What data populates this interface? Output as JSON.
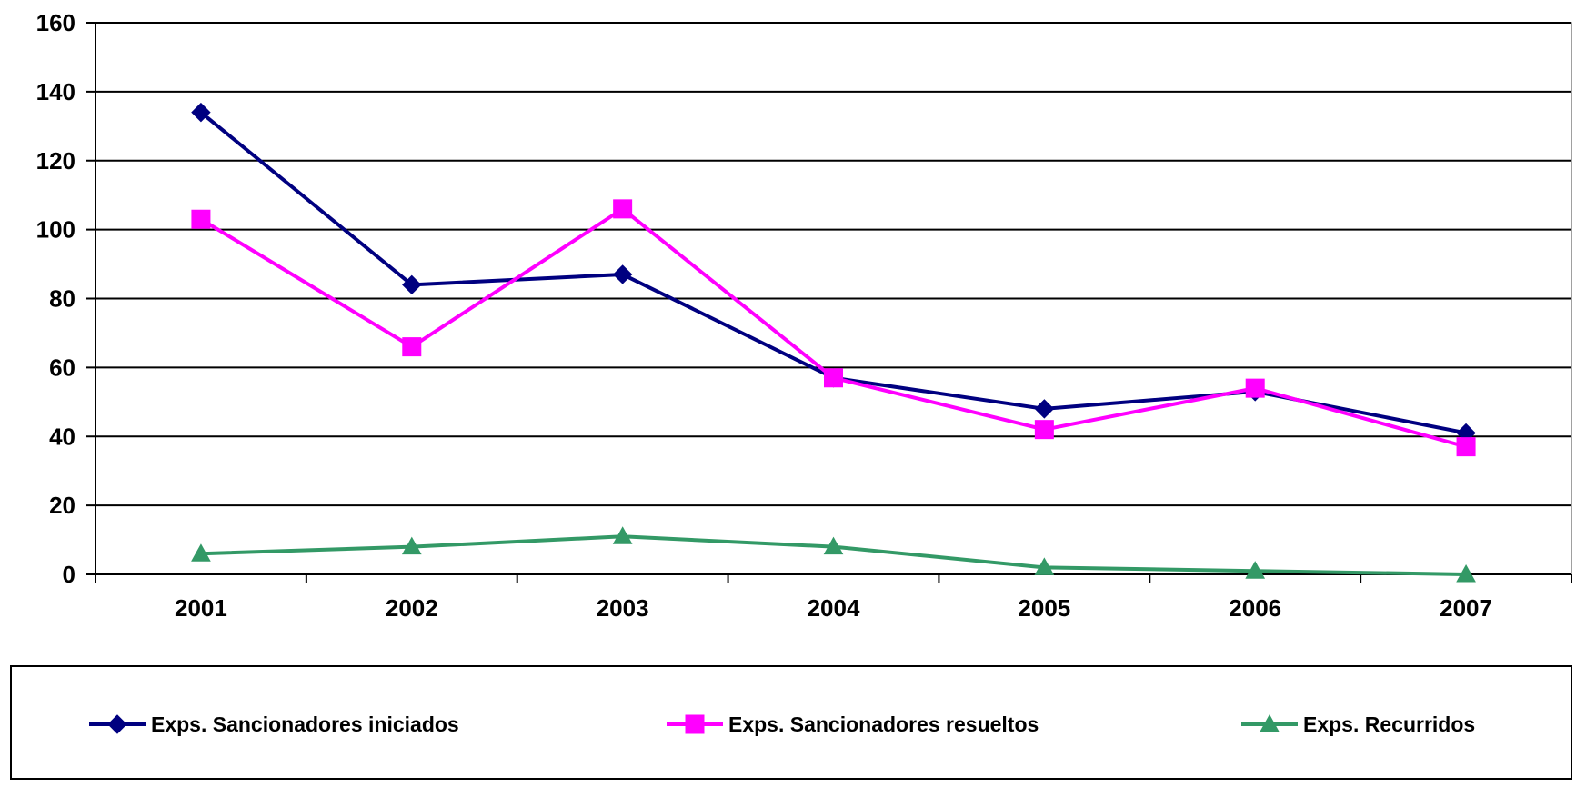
{
  "chart_data": {
    "type": "line",
    "title": "",
    "xlabel": "",
    "ylabel": "",
    "categories": [
      "2001",
      "2002",
      "2003",
      "2004",
      "2005",
      "2006",
      "2007"
    ],
    "ylim": [
      0,
      160
    ],
    "yticks": [
      0,
      20,
      40,
      60,
      80,
      100,
      120,
      140,
      160
    ],
    "grid": true,
    "legend_position": "bottom",
    "series": [
      {
        "name": "Exps. Sancionadores iniciados",
        "values": [
          134,
          84,
          87,
          57,
          48,
          53,
          41
        ],
        "color": "#000080",
        "marker": "diamond"
      },
      {
        "name": "Exps. Sancionadores resueltos",
        "values": [
          103,
          66,
          106,
          57,
          42,
          54,
          37
        ],
        "color": "#FF00FF",
        "marker": "square"
      },
      {
        "name": "Exps. Recurridos",
        "values": [
          6,
          8,
          11,
          8,
          2,
          1,
          0
        ],
        "color": "#339966",
        "marker": "triangle"
      }
    ]
  }
}
